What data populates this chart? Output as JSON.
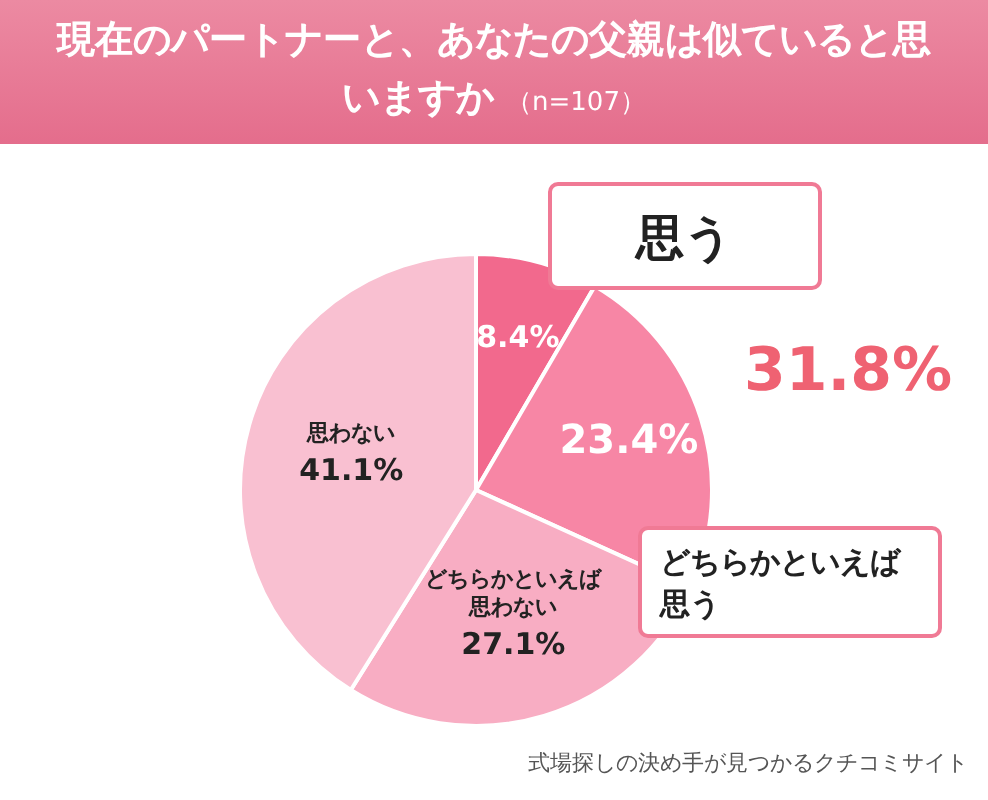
{
  "chart_data": {
    "type": "pie",
    "title": "現在のパートナーと、あなたの父親は似ていると思いますか",
    "subtitle": "（n=107）",
    "categories": [
      "思う",
      "どちらかといえば思う",
      "どちらかといえば思わない",
      "思わない"
    ],
    "values": [
      8.4,
      23.4,
      27.1,
      41.1
    ],
    "colors": [
      "#f2698d",
      "#f786a5",
      "#f8adc3",
      "#f9c0d1"
    ],
    "value_labels": [
      "8.4%",
      "23.4%",
      "27.1%",
      "41.1%"
    ],
    "annotations": [
      "31.8%",
      "式場探しの決め手が見つかるクチコミサイト"
    ]
  }
}
